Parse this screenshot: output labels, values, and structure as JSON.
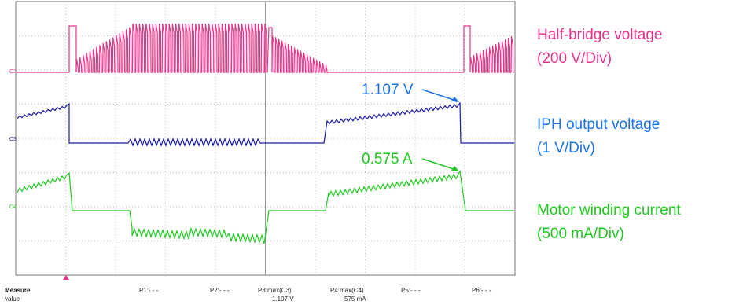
{
  "channels": [
    {
      "tag": "C2"
    },
    {
      "tag": "C3"
    },
    {
      "tag": "C4"
    }
  ],
  "annotations": [
    {
      "text": "1.107 V"
    },
    {
      "text": "0.575 A"
    }
  ],
  "legend": [
    {
      "name": "Half-bridge voltage",
      "scale": "(200 V/Div)"
    },
    {
      "name": "IPH output voltage",
      "scale": "(1 V/Div)"
    },
    {
      "name": "Motor winding current",
      "scale": "(500 mA/Div)"
    }
  ],
  "measure": {
    "title": "Measure",
    "row_label": "value",
    "slots": [
      {
        "name": "P1:- - -"
      },
      {
        "name": "P2:- - -"
      },
      {
        "name": "P3:max(C3)",
        "value": "1.107 V"
      },
      {
        "name": "P4:max(C4)",
        "value": "575 mA"
      },
      {
        "name": "P5:- - -"
      },
      {
        "name": "P6:- - -"
      }
    ]
  }
}
